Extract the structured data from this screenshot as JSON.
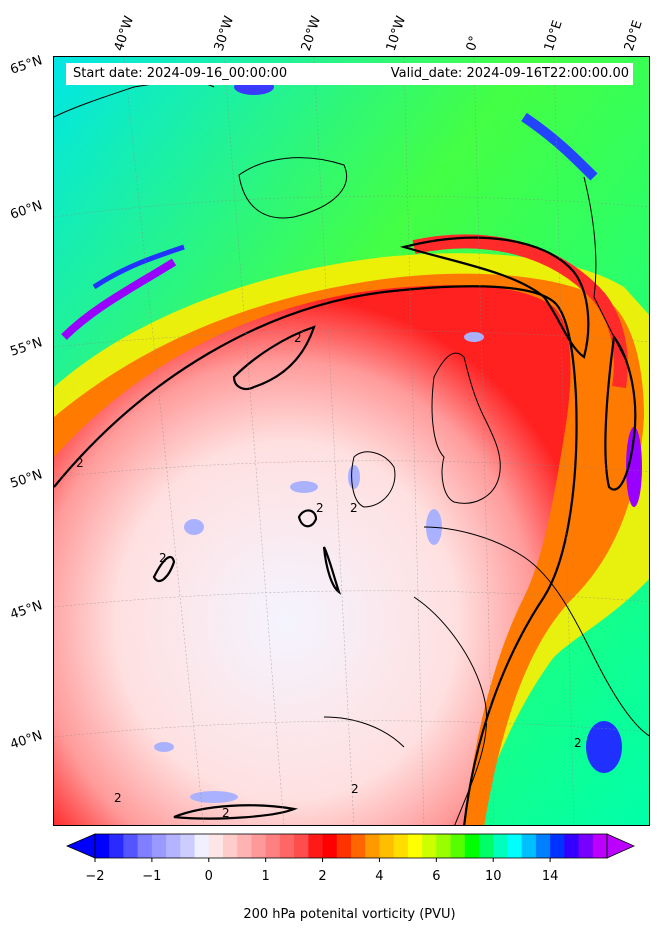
{
  "header": {
    "start_date": "Start date: 2024-09-16_00:00:00",
    "valid_date": "Valid_date: 2024-09-16T22:00:00.00"
  },
  "lon_labels": [
    "40°W",
    "30°W",
    "20°W",
    "10°W",
    "0°",
    "10°E",
    "20°E"
  ],
  "lat_labels": [
    "65°N",
    "60°N",
    "55°N",
    "50°N",
    "45°N",
    "40°N"
  ],
  "contour_label": "2",
  "colorbar": {
    "title": "200 hPa potenital vorticity (PVU)",
    "ticks": [
      "−2",
      "−1",
      "0",
      "1",
      "2",
      "4",
      "6",
      "10",
      "14"
    ],
    "colors": [
      "#0000ff",
      "#2a2aff",
      "#5555ff",
      "#7f7fff",
      "#9999ff",
      "#b3b3ff",
      "#ccccff",
      "#f0f0ff",
      "#ffe6e6",
      "#ffcccc",
      "#ffb3b3",
      "#ff9999",
      "#ff8080",
      "#ff6666",
      "#ff4d4d",
      "#ff1a1a",
      "#ff0000",
      "#ff3300",
      "#ff6600",
      "#ff9900",
      "#ffbf00",
      "#ffdd00",
      "#ffff00",
      "#ccff00",
      "#99ff00",
      "#55ff00",
      "#00ff00",
      "#00ff66",
      "#00ffbb",
      "#00ffff",
      "#00bfff",
      "#007fff",
      "#0033ff",
      "#3300ff",
      "#7700ff",
      "#bb00ff"
    ],
    "under_color": "#0000ff",
    "over_color": "#bb00ff"
  }
}
